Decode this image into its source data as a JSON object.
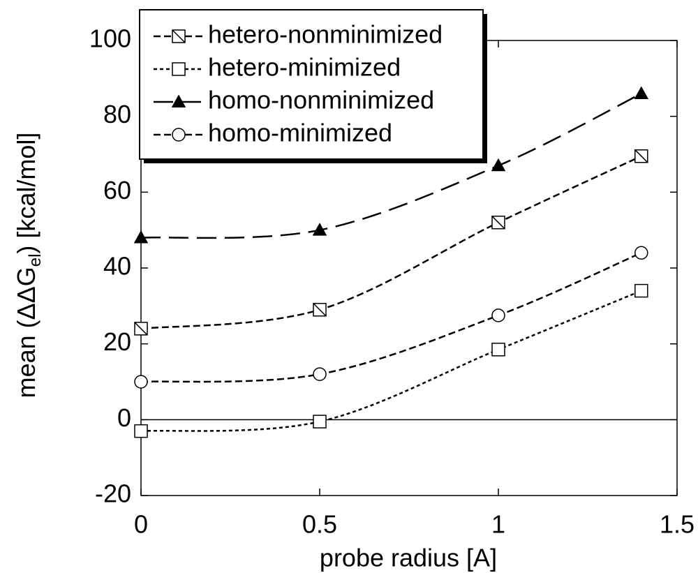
{
  "chart_data": {
    "type": "line",
    "ylabel": [
      "mean (ΔΔG",
      "el",
      ") [kcal/mol]"
    ],
    "xlabel": "probe radius [A]",
    "x": [
      0,
      0.5,
      1,
      1.4
    ],
    "xlim": [
      0,
      1.5
    ],
    "xticks": [
      0,
      0.5,
      1,
      1.5
    ],
    "ylim": [
      -20,
      100
    ],
    "yticks": [
      -20,
      0,
      20,
      40,
      60,
      80,
      100
    ],
    "zero_line": true,
    "legend": "upper-left",
    "series": [
      {
        "name": "hetero-nonminimized",
        "color": "#000000",
        "marker": "square-diagonal",
        "linestyle": "dashed",
        "values": [
          24,
          29,
          52,
          69.5
        ]
      },
      {
        "name": "hetero-minimized",
        "color": "#000000",
        "marker": "square",
        "linestyle": "dotted",
        "values": [
          -3,
          -0.5,
          18.5,
          34
        ]
      },
      {
        "name": "homo-nonminimized",
        "color": "#000000",
        "marker": "triangle-filled",
        "linestyle": "long-dashed",
        "values": [
          48,
          50,
          67,
          86
        ]
      },
      {
        "name": "homo-minimized",
        "color": "#000000",
        "marker": "circle",
        "linestyle": "dashed",
        "values": [
          10,
          12,
          27.5,
          44
        ]
      }
    ]
  }
}
